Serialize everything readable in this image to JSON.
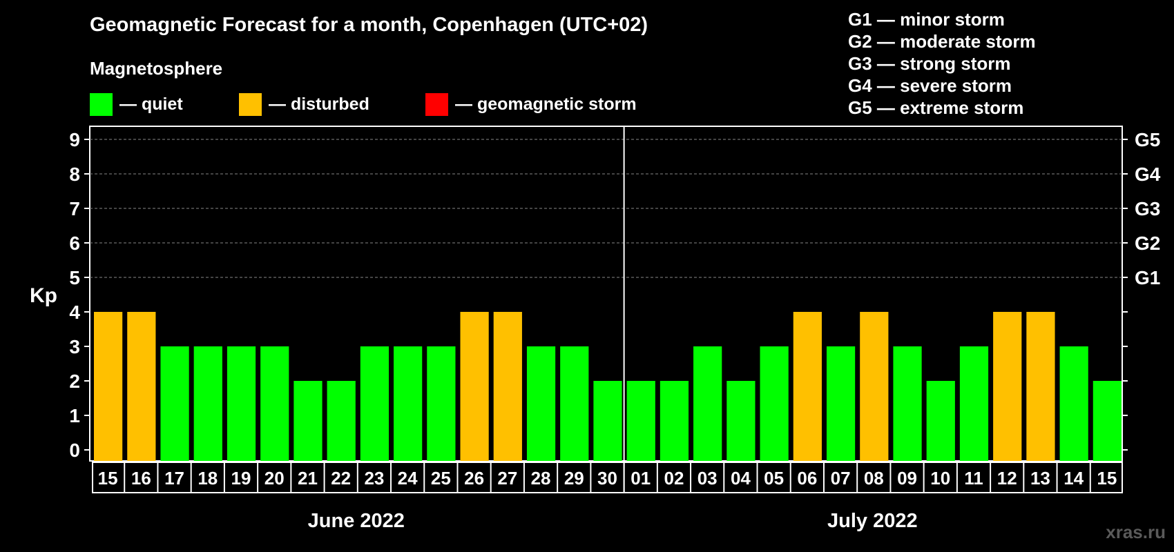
{
  "title": "Geomagnetic Forecast for a month, Copenhagen (UTC+02)",
  "legend": {
    "heading": "Magnetosphere",
    "items": [
      {
        "label": "— quiet",
        "color": "#00ff00"
      },
      {
        "label": "— disturbed",
        "color": "#ffc000"
      },
      {
        "label": "— geomagnetic storm",
        "color": "#ff0000"
      }
    ]
  },
  "storm_levels": [
    {
      "label": "G1 — minor storm",
      "kp": 5,
      "tag": "G1"
    },
    {
      "label": "G2 — moderate storm",
      "kp": 6,
      "tag": "G2"
    },
    {
      "label": "G3 — strong storm",
      "kp": 7,
      "tag": "G3"
    },
    {
      "label": "G4 — severe storm",
      "kp": 8,
      "tag": "G4"
    },
    {
      "label": "G5 — extreme storm",
      "kp": 9,
      "tag": "G5"
    }
  ],
  "watermark": "xras.ru",
  "chart_data": {
    "type": "bar",
    "ylabel": "Kp",
    "ylim": [
      0,
      9
    ],
    "yticks": [
      0,
      1,
      2,
      3,
      4,
      5,
      6,
      7,
      8,
      9
    ],
    "grid": "dashed horizontal at Kp 5-9",
    "categories": [
      "15",
      "16",
      "17",
      "18",
      "19",
      "20",
      "21",
      "22",
      "23",
      "24",
      "25",
      "26",
      "27",
      "28",
      "29",
      "30",
      "01",
      "02",
      "03",
      "04",
      "05",
      "06",
      "07",
      "08",
      "09",
      "10",
      "11",
      "12",
      "13",
      "14",
      "15"
    ],
    "values": [
      4,
      4,
      3,
      3,
      3,
      3,
      2,
      2,
      3,
      3,
      3,
      4,
      4,
      3,
      3,
      2,
      2,
      2,
      3,
      2,
      3,
      4,
      3,
      4,
      3,
      2,
      3,
      4,
      4,
      3,
      2
    ],
    "months": [
      {
        "label": "June 2022",
        "start": 0,
        "end": 15
      },
      {
        "label": "July 2022",
        "start": 16,
        "end": 30
      }
    ],
    "color_rule": {
      "quiet_below": 4,
      "disturbed_from": 4,
      "storm_from": 5
    }
  }
}
